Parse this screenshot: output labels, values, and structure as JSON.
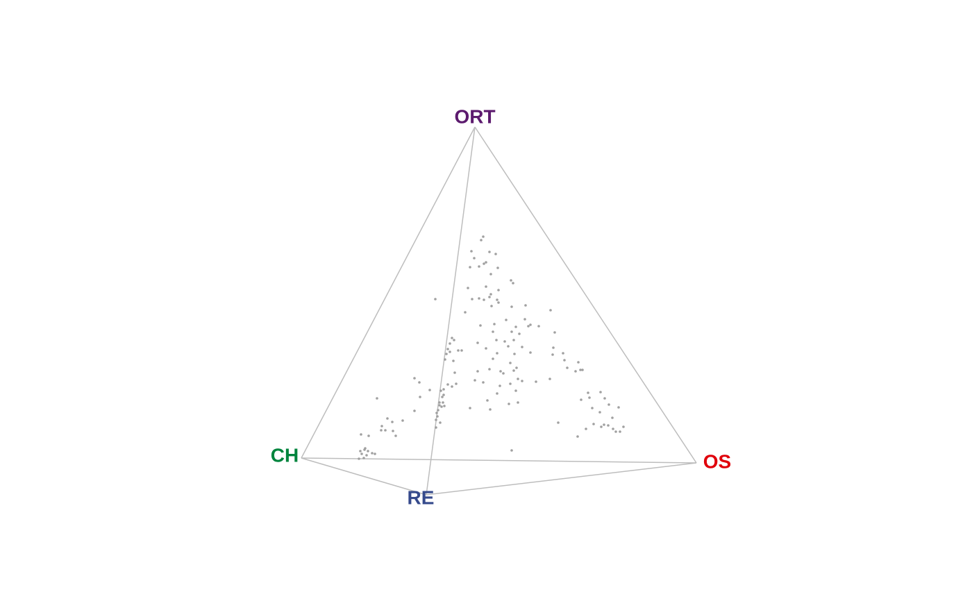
{
  "chart_data": {
    "type": "scatter",
    "vertices": [
      {
        "label": "ORT",
        "color": "#5c1a6e"
      },
      {
        "label": "CH",
        "color": "#00843d"
      },
      {
        "label": "OS",
        "color": "#e0000b"
      },
      {
        "label": "RE",
        "color": "#354a8c"
      }
    ],
    "edge_color": "#bdbdbd",
    "color": "#a0a0a0",
    "xlim": [
      0,
      140
    ],
    "ylim": [
      0,
      86.6
    ],
    "x": [
      69.6,
      69.3,
      67.9,
      68.3,
      70.5,
      71.4,
      70.0,
      69.7,
      67.7,
      69.0,
      71.7,
      70.7,
      73.6,
      73.9,
      70.0,
      67.4,
      71.8,
      70.7,
      70.5,
      69.0,
      71.6,
      68.0,
      69.7,
      71.8,
      70.8,
      73.7,
      62.7,
      75.7,
      79.3,
      67.0,
      72.9,
      75.6,
      74.3,
      71.2,
      69.2,
      76.1,
      76.4,
      77.6,
      73.7,
      74.8,
      71.0,
      74.0,
      71.5,
      72.7,
      68.8,
      73.2,
      75.2,
      79.9,
      65.1,
      65.4,
      64.8,
      64.5,
      64.8,
      64.3,
      66.0,
      66.5,
      65.3,
      64.1,
      70.0,
      71.6,
      74.1,
      76.4,
      79.7,
      79.6,
      81.1,
      81.3,
      83.3,
      83.6,
      82.9,
      83.9,
      81.7,
      71.0,
      73.5,
      74.4,
      74.0,
      72.1,
      72.5,
      70.5,
      68.8,
      74.6,
      75.2,
      73.5,
      77.2,
      72.0,
      68.4,
      69.6,
      65.5,
      65.7,
      64.5,
      63.9,
      63.5,
      65.1,
      63.9,
      63.7,
      63.3,
      63.3,
      63.6,
      63.1,
      62.9,
      63.0,
      62.8,
      63.4,
      62.8,
      63.8,
      64.0,
      59.7,
      60.4,
      61.9,
      60.5,
      71.6,
      74.3,
      70.2,
      70.6,
      67.7,
      73.3,
      74.6,
      79.2,
      84.7,
      83.7,
      84.9,
      86.5,
      87.1,
      87.7,
      85.3,
      89.1,
      86.4,
      88.2,
      85.5,
      87.0,
      86.6,
      87.6,
      88.3,
      88.7,
      89.3,
      89.8,
      80.4,
      84.4,
      83.2,
      73.7,
      54.3,
      58.0,
      59.7,
      56.5,
      55.0,
      55.8,
      54.9,
      55.5,
      56.6,
      57.0,
      52.0,
      53.1,
      51.9,
      52.5,
      52.1,
      52.8,
      53.6,
      54.0,
      51.7,
      52.6,
      53.0,
      52.4
    ],
    "y": [
      52.5,
      52.0,
      50.4,
      49.4,
      50.3,
      50.0,
      48.8,
      48.6,
      48.1,
      48.2,
      48.0,
      47.1,
      46.2,
      45.8,
      45.3,
      45.1,
      44.8,
      44.2,
      43.8,
      43.6,
      43.4,
      43.5,
      43.4,
      43.0,
      42.5,
      42.4,
      43.5,
      42.6,
      41.9,
      41.6,
      40.5,
      40.6,
      39.5,
      39.9,
      39.7,
      39.6,
      39.8,
      39.6,
      38.8,
      38.5,
      38.8,
      37.6,
      37.6,
      37.4,
      37.2,
      36.7,
      36.6,
      38.7,
      37.9,
      37.6,
      37.1,
      36.3,
      35.9,
      35.6,
      36.1,
      36.1,
      34.6,
      34.8,
      36.4,
      35.7,
      35.6,
      35.8,
      36.5,
      35.5,
      35.7,
      34.7,
      34.4,
      33.3,
      33.1,
      33.3,
      33.6,
      34.9,
      34.3,
      33.6,
      33.2,
      33.1,
      32.8,
      33.4,
      33.1,
      32.0,
      31.7,
      31.3,
      31.6,
      31.0,
      31.8,
      31.5,
      32.9,
      31.3,
      31.2,
      30.5,
      30.3,
      30.9,
      29.7,
      29.4,
      28.6,
      28.2,
      28.0,
      27.5,
      27.1,
      26.6,
      26.1,
      25.7,
      25.0,
      28.6,
      28.1,
      32.1,
      31.5,
      30.4,
      29.4,
      29.9,
      30.3,
      28.9,
      27.6,
      27.8,
      28.4,
      28.6,
      32.0,
      30.0,
      29.0,
      29.3,
      30.1,
      29.2,
      28.3,
      27.8,
      27.9,
      27.2,
      26.4,
      25.5,
      25.4,
      25.1,
      25.3,
      24.8,
      24.4,
      24.4,
      25.1,
      25.7,
      24.8,
      23.7,
      21.7,
      29.2,
      26.0,
      27.4,
      25.8,
      25.2,
      26.3,
      24.6,
      24.6,
      24.5,
      23.8,
      24.0,
      23.8,
      21.6,
      21.8,
      21.2,
      21.0,
      21.3,
      21.2,
      20.5,
      22.0,
      21.6,
      20.6
    ]
  }
}
